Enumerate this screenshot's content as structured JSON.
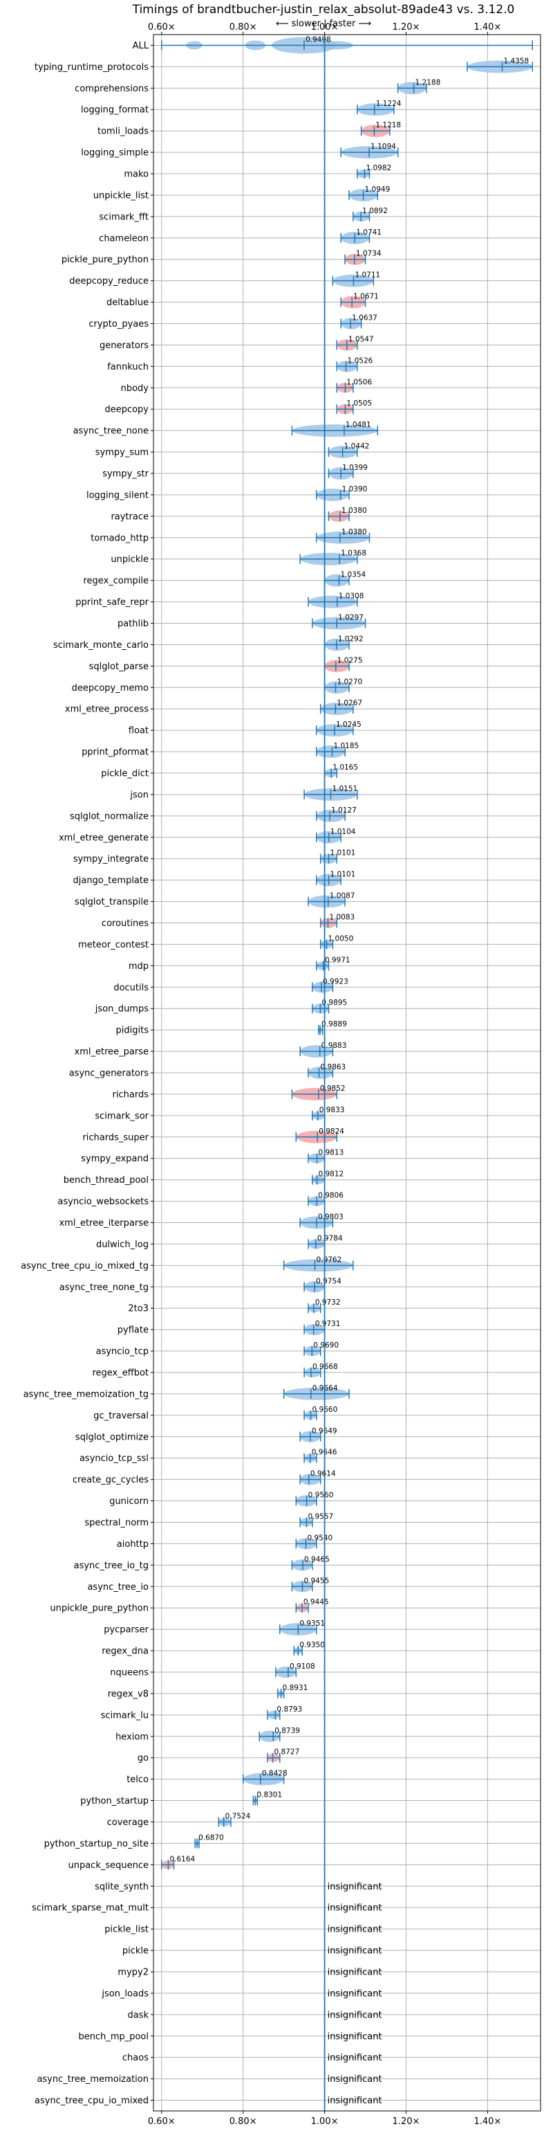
{
  "chart_data": {
    "type": "violin",
    "title": "Timings of brandtbucher-justin_relax_absolut-89ade43 vs. 3.12.0",
    "subtitle": "⟵ slower | faster ⟶",
    "xlim": [
      0.58,
      1.53
    ],
    "xticks": [
      "0.60×",
      "0.80×",
      "1.00×",
      "1.20×",
      "1.40×"
    ],
    "xtick_values": [
      0.6,
      0.8,
      1.0,
      1.2,
      1.4
    ],
    "reference_line": 1.0,
    "grid": true,
    "insignificant_label": "insignificant",
    "colors": {
      "violin": "#9cc3e6",
      "violin_sig": "#f2a6a6",
      "line": "#1f77b4",
      "grid": "#b0b0b0"
    },
    "benchmarks": [
      {
        "name": "ALL",
        "mean": "0.9498",
        "value": 0.9498,
        "low": 0.6,
        "high": 1.51,
        "color": "blue"
      },
      {
        "name": "typing_runtime_protocols",
        "mean": "1.4358",
        "value": 1.4358,
        "low": 1.35,
        "high": 1.51,
        "color": "blue"
      },
      {
        "name": "comprehensions",
        "mean": "1.2188",
        "value": 1.2188,
        "low": 1.18,
        "high": 1.25,
        "color": "blue"
      },
      {
        "name": "logging_format",
        "mean": "1.1224",
        "value": 1.1224,
        "low": 1.08,
        "high": 1.17,
        "color": "blue"
      },
      {
        "name": "tomli_loads",
        "mean": "1.1218",
        "value": 1.1218,
        "low": 1.09,
        "high": 1.16,
        "color": "red"
      },
      {
        "name": "logging_simple",
        "mean": "1.1094",
        "value": 1.1094,
        "low": 1.04,
        "high": 1.18,
        "color": "blue"
      },
      {
        "name": "mako",
        "mean": "1.0982",
        "value": 1.0982,
        "low": 1.08,
        "high": 1.11,
        "color": "blue"
      },
      {
        "name": "unpickle_list",
        "mean": "1.0949",
        "value": 1.0949,
        "low": 1.06,
        "high": 1.13,
        "color": "blue"
      },
      {
        "name": "scimark_fft",
        "mean": "1.0892",
        "value": 1.0892,
        "low": 1.07,
        "high": 1.11,
        "color": "blue"
      },
      {
        "name": "chameleon",
        "mean": "1.0741",
        "value": 1.0741,
        "low": 1.04,
        "high": 1.11,
        "color": "blue"
      },
      {
        "name": "pickle_pure_python",
        "mean": "1.0734",
        "value": 1.0734,
        "low": 1.05,
        "high": 1.1,
        "color": "red"
      },
      {
        "name": "deepcopy_reduce",
        "mean": "1.0711",
        "value": 1.0711,
        "low": 1.02,
        "high": 1.12,
        "color": "blue"
      },
      {
        "name": "deltablue",
        "mean": "1.0671",
        "value": 1.0671,
        "low": 1.04,
        "high": 1.1,
        "color": "red"
      },
      {
        "name": "crypto_pyaes",
        "mean": "1.0637",
        "value": 1.0637,
        "low": 1.04,
        "high": 1.09,
        "color": "blue"
      },
      {
        "name": "generators",
        "mean": "1.0547",
        "value": 1.0547,
        "low": 1.03,
        "high": 1.08,
        "color": "red"
      },
      {
        "name": "fannkuch",
        "mean": "1.0526",
        "value": 1.0526,
        "low": 1.03,
        "high": 1.08,
        "color": "blue"
      },
      {
        "name": "nbody",
        "mean": "1.0506",
        "value": 1.0506,
        "low": 1.03,
        "high": 1.07,
        "color": "red"
      },
      {
        "name": "deepcopy",
        "mean": "1.0505",
        "value": 1.0505,
        "low": 1.03,
        "high": 1.07,
        "color": "red"
      },
      {
        "name": "async_tree_none",
        "mean": "1.0481",
        "value": 1.0481,
        "low": 0.92,
        "high": 1.13,
        "color": "blue"
      },
      {
        "name": "sympy_sum",
        "mean": "1.0442",
        "value": 1.0442,
        "low": 1.01,
        "high": 1.08,
        "color": "blue"
      },
      {
        "name": "sympy_str",
        "mean": "1.0399",
        "value": 1.0399,
        "low": 1.01,
        "high": 1.07,
        "color": "blue"
      },
      {
        "name": "logging_silent",
        "mean": "1.0390",
        "value": 1.039,
        "low": 0.98,
        "high": 1.06,
        "color": "blue"
      },
      {
        "name": "raytrace",
        "mean": "1.0380",
        "value": 1.038,
        "low": 1.01,
        "high": 1.06,
        "color": "red"
      },
      {
        "name": "tornado_http",
        "mean": "1.0380",
        "value": 1.038,
        "low": 0.98,
        "high": 1.11,
        "color": "blue"
      },
      {
        "name": "unpickle",
        "mean": "1.0368",
        "value": 1.0368,
        "low": 0.94,
        "high": 1.08,
        "color": "blue"
      },
      {
        "name": "regex_compile",
        "mean": "1.0354",
        "value": 1.0354,
        "low": 1.0,
        "high": 1.06,
        "color": "blue"
      },
      {
        "name": "pprint_safe_repr",
        "mean": "1.0308",
        "value": 1.0308,
        "low": 0.96,
        "high": 1.08,
        "color": "blue"
      },
      {
        "name": "pathlib",
        "mean": "1.0297",
        "value": 1.0297,
        "low": 0.97,
        "high": 1.1,
        "color": "blue"
      },
      {
        "name": "scimark_monte_carlo",
        "mean": "1.0292",
        "value": 1.0292,
        "low": 1.0,
        "high": 1.06,
        "color": "blue"
      },
      {
        "name": "sqlglot_parse",
        "mean": "1.0275",
        "value": 1.0275,
        "low": 1.0,
        "high": 1.06,
        "color": "red"
      },
      {
        "name": "deepcopy_memo",
        "mean": "1.0270",
        "value": 1.027,
        "low": 1.0,
        "high": 1.06,
        "color": "blue"
      },
      {
        "name": "xml_etree_process",
        "mean": "1.0267",
        "value": 1.0267,
        "low": 0.99,
        "high": 1.07,
        "color": "blue"
      },
      {
        "name": "float",
        "mean": "1.0245",
        "value": 1.0245,
        "low": 0.98,
        "high": 1.07,
        "color": "blue"
      },
      {
        "name": "pprint_pformat",
        "mean": "1.0185",
        "value": 1.0185,
        "low": 0.98,
        "high": 1.05,
        "color": "blue"
      },
      {
        "name": "pickle_dict",
        "mean": "1.0165",
        "value": 1.0165,
        "low": 1.0,
        "high": 1.03,
        "color": "blue"
      },
      {
        "name": "json",
        "mean": "1.0151",
        "value": 1.0151,
        "low": 0.95,
        "high": 1.08,
        "color": "blue"
      },
      {
        "name": "sqlglot_normalize",
        "mean": "1.0127",
        "value": 1.0127,
        "low": 0.98,
        "high": 1.05,
        "color": "blue"
      },
      {
        "name": "xml_etree_generate",
        "mean": "1.0104",
        "value": 1.0104,
        "low": 0.98,
        "high": 1.04,
        "color": "blue"
      },
      {
        "name": "sympy_integrate",
        "mean": "1.0101",
        "value": 1.0101,
        "low": 0.99,
        "high": 1.03,
        "color": "blue"
      },
      {
        "name": "django_template",
        "mean": "1.0101",
        "value": 1.0101,
        "low": 0.98,
        "high": 1.04,
        "color": "blue"
      },
      {
        "name": "sqlglot_transpile",
        "mean": "1.0087",
        "value": 1.0087,
        "low": 0.96,
        "high": 1.05,
        "color": "blue"
      },
      {
        "name": "coroutines",
        "mean": "1.0083",
        "value": 1.0083,
        "low": 0.99,
        "high": 1.03,
        "color": "red"
      },
      {
        "name": "meteor_contest",
        "mean": "1.0050",
        "value": 1.005,
        "low": 0.99,
        "high": 1.02,
        "color": "blue"
      },
      {
        "name": "mdp",
        "mean": "0.9971",
        "value": 0.9971,
        "low": 0.98,
        "high": 1.01,
        "color": "blue"
      },
      {
        "name": "docutils",
        "mean": "0.9923",
        "value": 0.9923,
        "low": 0.97,
        "high": 1.02,
        "color": "blue"
      },
      {
        "name": "json_dumps",
        "mean": "0.9895",
        "value": 0.9895,
        "low": 0.97,
        "high": 1.01,
        "color": "blue"
      },
      {
        "name": "pidigits",
        "mean": "0.9889",
        "value": 0.9889,
        "low": 0.985,
        "high": 0.995,
        "color": "blue"
      },
      {
        "name": "xml_etree_parse",
        "mean": "0.9883",
        "value": 0.9883,
        "low": 0.94,
        "high": 1.02,
        "color": "blue"
      },
      {
        "name": "async_generators",
        "mean": "0.9863",
        "value": 0.9863,
        "low": 0.96,
        "high": 1.02,
        "color": "blue"
      },
      {
        "name": "richards",
        "mean": "0.9852",
        "value": 0.9852,
        "low": 0.92,
        "high": 1.03,
        "color": "red"
      },
      {
        "name": "scimark_sor",
        "mean": "0.9833",
        "value": 0.9833,
        "low": 0.97,
        "high": 1.0,
        "color": "blue"
      },
      {
        "name": "richards_super",
        "mean": "0.9824",
        "value": 0.9824,
        "low": 0.93,
        "high": 1.03,
        "color": "red"
      },
      {
        "name": "sympy_expand",
        "mean": "0.9813",
        "value": 0.9813,
        "low": 0.96,
        "high": 1.0,
        "color": "blue"
      },
      {
        "name": "bench_thread_pool",
        "mean": "0.9812",
        "value": 0.9812,
        "low": 0.97,
        "high": 1.0,
        "color": "blue"
      },
      {
        "name": "asyncio_websockets",
        "mean": "0.9806",
        "value": 0.9806,
        "low": 0.96,
        "high": 1.0,
        "color": "blue"
      },
      {
        "name": "xml_etree_iterparse",
        "mean": "0.9803",
        "value": 0.9803,
        "low": 0.94,
        "high": 1.02,
        "color": "blue"
      },
      {
        "name": "dulwich_log",
        "mean": "0.9784",
        "value": 0.9784,
        "low": 0.96,
        "high": 1.0,
        "color": "blue"
      },
      {
        "name": "async_tree_cpu_io_mixed_tg",
        "mean": "0.9762",
        "value": 0.9762,
        "low": 0.9,
        "high": 1.07,
        "color": "blue"
      },
      {
        "name": "async_tree_none_tg",
        "mean": "0.9754",
        "value": 0.9754,
        "low": 0.95,
        "high": 1.0,
        "color": "blue"
      },
      {
        "name": "2to3",
        "mean": "0.9732",
        "value": 0.9732,
        "low": 0.96,
        "high": 0.99,
        "color": "blue"
      },
      {
        "name": "pyflate",
        "mean": "0.9731",
        "value": 0.9731,
        "low": 0.95,
        "high": 1.0,
        "color": "blue"
      },
      {
        "name": "asyncio_tcp",
        "mean": "0.9690",
        "value": 0.969,
        "low": 0.95,
        "high": 0.99,
        "color": "blue"
      },
      {
        "name": "regex_effbot",
        "mean": "0.9668",
        "value": 0.9668,
        "low": 0.95,
        "high": 0.99,
        "color": "blue"
      },
      {
        "name": "async_tree_memoization_tg",
        "mean": "0.9664",
        "value": 0.9664,
        "low": 0.9,
        "high": 1.06,
        "color": "blue"
      },
      {
        "name": "gc_traversal",
        "mean": "0.9660",
        "value": 0.966,
        "low": 0.95,
        "high": 0.98,
        "color": "blue"
      },
      {
        "name": "sqlglot_optimize",
        "mean": "0.9649",
        "value": 0.9649,
        "low": 0.94,
        "high": 0.99,
        "color": "blue"
      },
      {
        "name": "asyncio_tcp_ssl",
        "mean": "0.9646",
        "value": 0.9646,
        "low": 0.95,
        "high": 0.98,
        "color": "blue"
      },
      {
        "name": "create_gc_cycles",
        "mean": "0.9614",
        "value": 0.9614,
        "low": 0.94,
        "high": 0.99,
        "color": "blue"
      },
      {
        "name": "gunicorn",
        "mean": "0.9560",
        "value": 0.956,
        "low": 0.93,
        "high": 0.98,
        "color": "blue"
      },
      {
        "name": "spectral_norm",
        "mean": "0.9557",
        "value": 0.9557,
        "low": 0.94,
        "high": 0.97,
        "color": "blue"
      },
      {
        "name": "aiohttp",
        "mean": "0.9540",
        "value": 0.954,
        "low": 0.93,
        "high": 0.98,
        "color": "blue"
      },
      {
        "name": "async_tree_io_tg",
        "mean": "0.9465",
        "value": 0.9465,
        "low": 0.92,
        "high": 0.97,
        "color": "blue"
      },
      {
        "name": "async_tree_io",
        "mean": "0.9455",
        "value": 0.9455,
        "low": 0.92,
        "high": 0.97,
        "color": "blue"
      },
      {
        "name": "unpickle_pure_python",
        "mean": "0.9445",
        "value": 0.9445,
        "low": 0.93,
        "high": 0.96,
        "color": "red"
      },
      {
        "name": "pycparser",
        "mean": "0.9351",
        "value": 0.9351,
        "low": 0.89,
        "high": 0.98,
        "color": "blue"
      },
      {
        "name": "regex_dna",
        "mean": "0.9350",
        "value": 0.935,
        "low": 0.925,
        "high": 0.945,
        "color": "blue"
      },
      {
        "name": "nqueens",
        "mean": "0.9108",
        "value": 0.9108,
        "low": 0.88,
        "high": 0.93,
        "color": "blue"
      },
      {
        "name": "regex_v8",
        "mean": "0.8931",
        "value": 0.8931,
        "low": 0.885,
        "high": 0.9,
        "color": "blue"
      },
      {
        "name": "scimark_lu",
        "mean": "0.8793",
        "value": 0.8793,
        "low": 0.86,
        "high": 0.89,
        "color": "blue"
      },
      {
        "name": "hexiom",
        "mean": "0.8739",
        "value": 0.8739,
        "low": 0.84,
        "high": 0.89,
        "color": "blue"
      },
      {
        "name": "go",
        "mean": "0.8727",
        "value": 0.8727,
        "low": 0.86,
        "high": 0.89,
        "color": "red"
      },
      {
        "name": "telco",
        "mean": "0.8428",
        "value": 0.8428,
        "low": 0.8,
        "high": 0.9,
        "color": "blue"
      },
      {
        "name": "python_startup",
        "mean": "0.8301",
        "value": 0.8301,
        "low": 0.825,
        "high": 0.835,
        "color": "blue"
      },
      {
        "name": "coverage",
        "mean": "0.7524",
        "value": 0.7524,
        "low": 0.74,
        "high": 0.77,
        "color": "blue"
      },
      {
        "name": "python_startup_no_site",
        "mean": "0.6870",
        "value": 0.687,
        "low": 0.682,
        "high": 0.692,
        "color": "blue"
      },
      {
        "name": "unpack_sequence",
        "mean": "0.6164",
        "value": 0.6164,
        "low": 0.6,
        "high": 0.63,
        "color": "red"
      },
      {
        "name": "sqlite_synth",
        "mean": "",
        "value": null,
        "low": null,
        "high": null,
        "color": "none"
      },
      {
        "name": "scimark_sparse_mat_mult",
        "mean": "",
        "value": null,
        "low": null,
        "high": null,
        "color": "none"
      },
      {
        "name": "pickle_list",
        "mean": "",
        "value": null,
        "low": null,
        "high": null,
        "color": "none"
      },
      {
        "name": "pickle",
        "mean": "",
        "value": null,
        "low": null,
        "high": null,
        "color": "none"
      },
      {
        "name": "mypy2",
        "mean": "",
        "value": null,
        "low": null,
        "high": null,
        "color": "none"
      },
      {
        "name": "json_loads",
        "mean": "",
        "value": null,
        "low": null,
        "high": null,
        "color": "none"
      },
      {
        "name": "dask",
        "mean": "",
        "value": null,
        "low": null,
        "high": null,
        "color": "none"
      },
      {
        "name": "bench_mp_pool",
        "mean": "",
        "value": null,
        "low": null,
        "high": null,
        "color": "none"
      },
      {
        "name": "chaos",
        "mean": "",
        "value": null,
        "low": null,
        "high": null,
        "color": "none"
      },
      {
        "name": "async_tree_memoization",
        "mean": "",
        "value": null,
        "low": null,
        "high": null,
        "color": "none"
      },
      {
        "name": "async_tree_cpu_io_mixed",
        "mean": "",
        "value": null,
        "low": null,
        "high": null,
        "color": "none"
      }
    ]
  }
}
